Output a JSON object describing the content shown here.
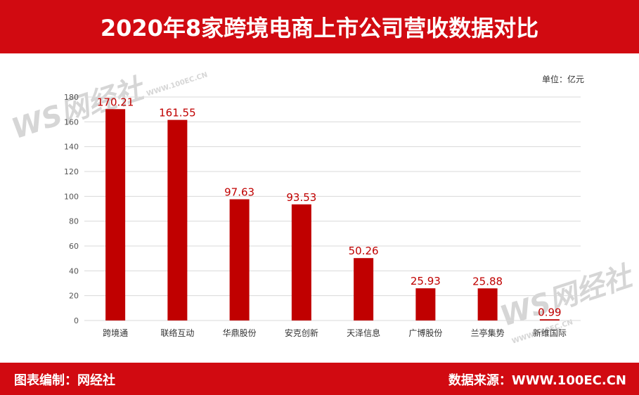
{
  "header": {
    "title": "2020年8家跨境电商上市公司营收数据对比"
  },
  "unit_label": "单位：亿元",
  "footer": {
    "left": "图表编制：网经社",
    "right": "数据来源：WWW.100EC.CN"
  },
  "watermark": {
    "logo": "WS网经社",
    "site": "WWW.100EC.CN"
  },
  "colors": {
    "brand": "#d10a11",
    "bar": "#c00000",
    "label": "#c00000"
  },
  "chart_data": {
    "type": "bar",
    "categories": [
      "跨境通",
      "联络互动",
      "华鼎股份",
      "安克创新",
      "天泽信息",
      "广博股份",
      "兰亭集势",
      "新维国际"
    ],
    "values": [
      170.21,
      161.55,
      97.63,
      93.53,
      50.26,
      25.93,
      25.88,
      0.99
    ],
    "data_labels": [
      "170.21",
      "161.55",
      "97.63",
      "93.53",
      "50.26",
      "25.93",
      "25.88",
      "0.99"
    ],
    "yticks": [
      0,
      20,
      40,
      60,
      80,
      100,
      120,
      140,
      160,
      180
    ],
    "ylim": [
      0,
      180
    ],
    "grid": true,
    "legend": "none"
  }
}
